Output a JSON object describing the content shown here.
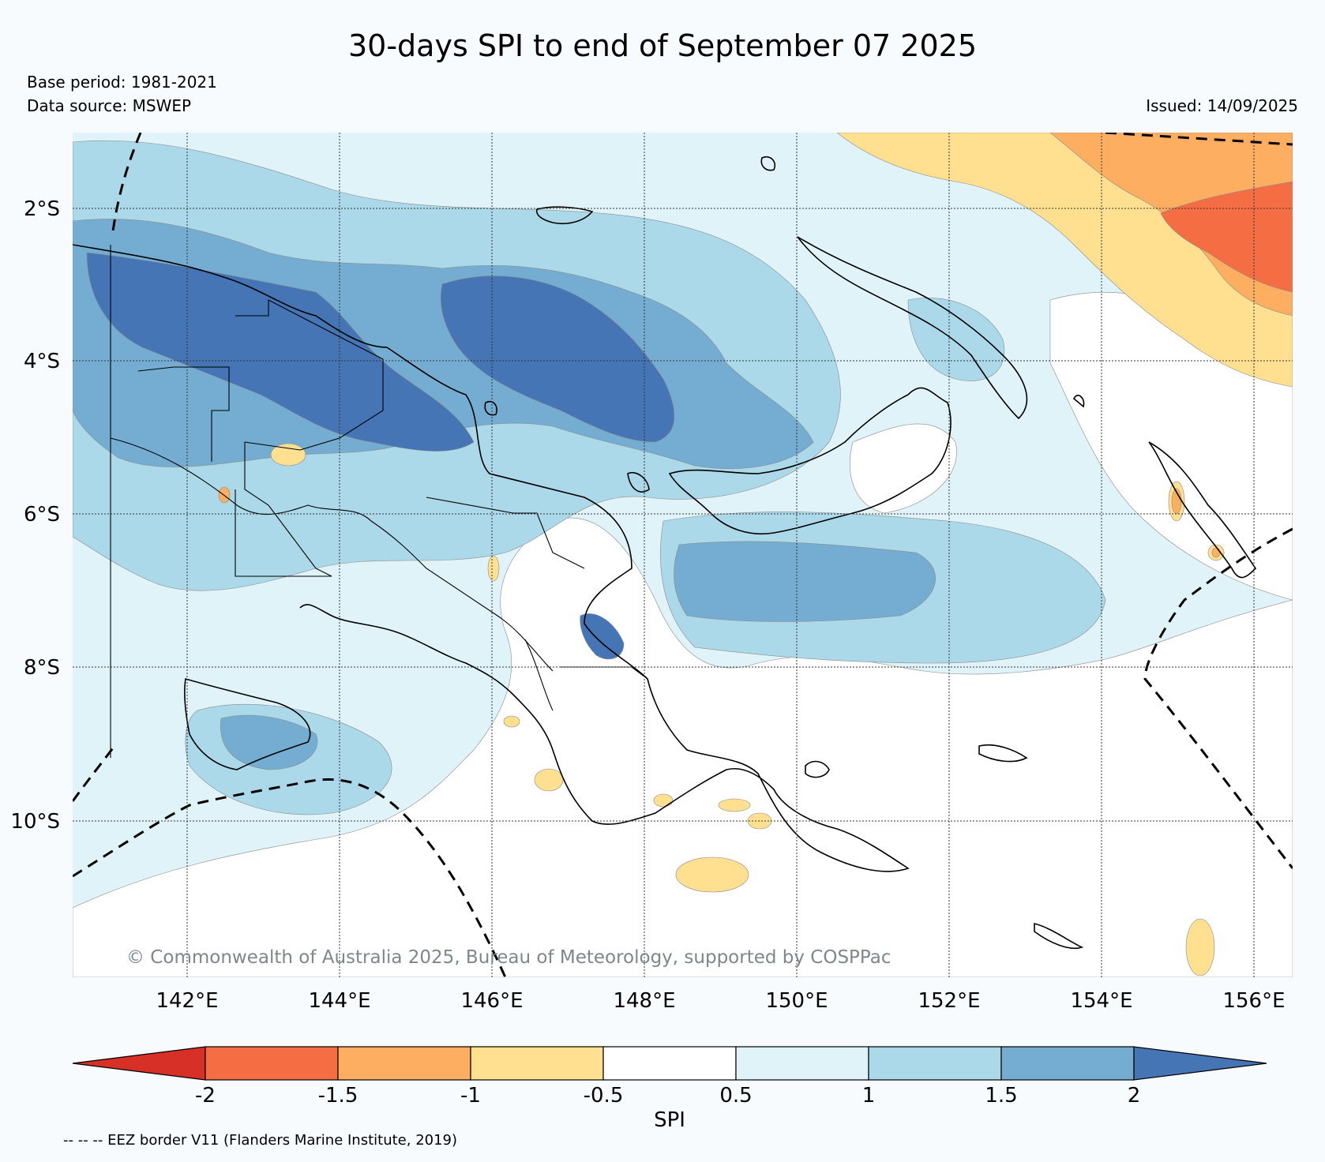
{
  "title": "30-days SPI to end of September 07 2025",
  "base_period": "Base period: 1981-2021",
  "data_source": "Data source: MSWEP",
  "issued": "Issued: 14/09/2025",
  "credit": "© Commonwealth of Australia 2025, Bureau of Meteorology, supported by COSPPac",
  "eez_note": "-- -- -- EEZ border V11 (Flanders Marine Institute, 2019)",
  "map": {
    "lat_ticks": [
      "2°S",
      "4°S",
      "6°S",
      "8°S",
      "10°S"
    ],
    "lon_ticks": [
      "142°E",
      "144°E",
      "146°E",
      "148°E",
      "150°E",
      "152°E",
      "154°E",
      "156°E"
    ],
    "background_color": "#ffffff",
    "coastline_color": "#000000",
    "eez_style": "dashed"
  },
  "colorbar": {
    "title": "SPI",
    "tick_labels": [
      "-2",
      "-1.5",
      "-1",
      "-0.5",
      "0.5",
      "1",
      "1.5",
      "2"
    ],
    "colors": [
      "#d73027",
      "#f46d43",
      "#fdae61",
      "#fee090",
      "#ffffff",
      "#e0f3f8",
      "#abd9e9",
      "#74add1",
      "#4575b4"
    ]
  }
}
